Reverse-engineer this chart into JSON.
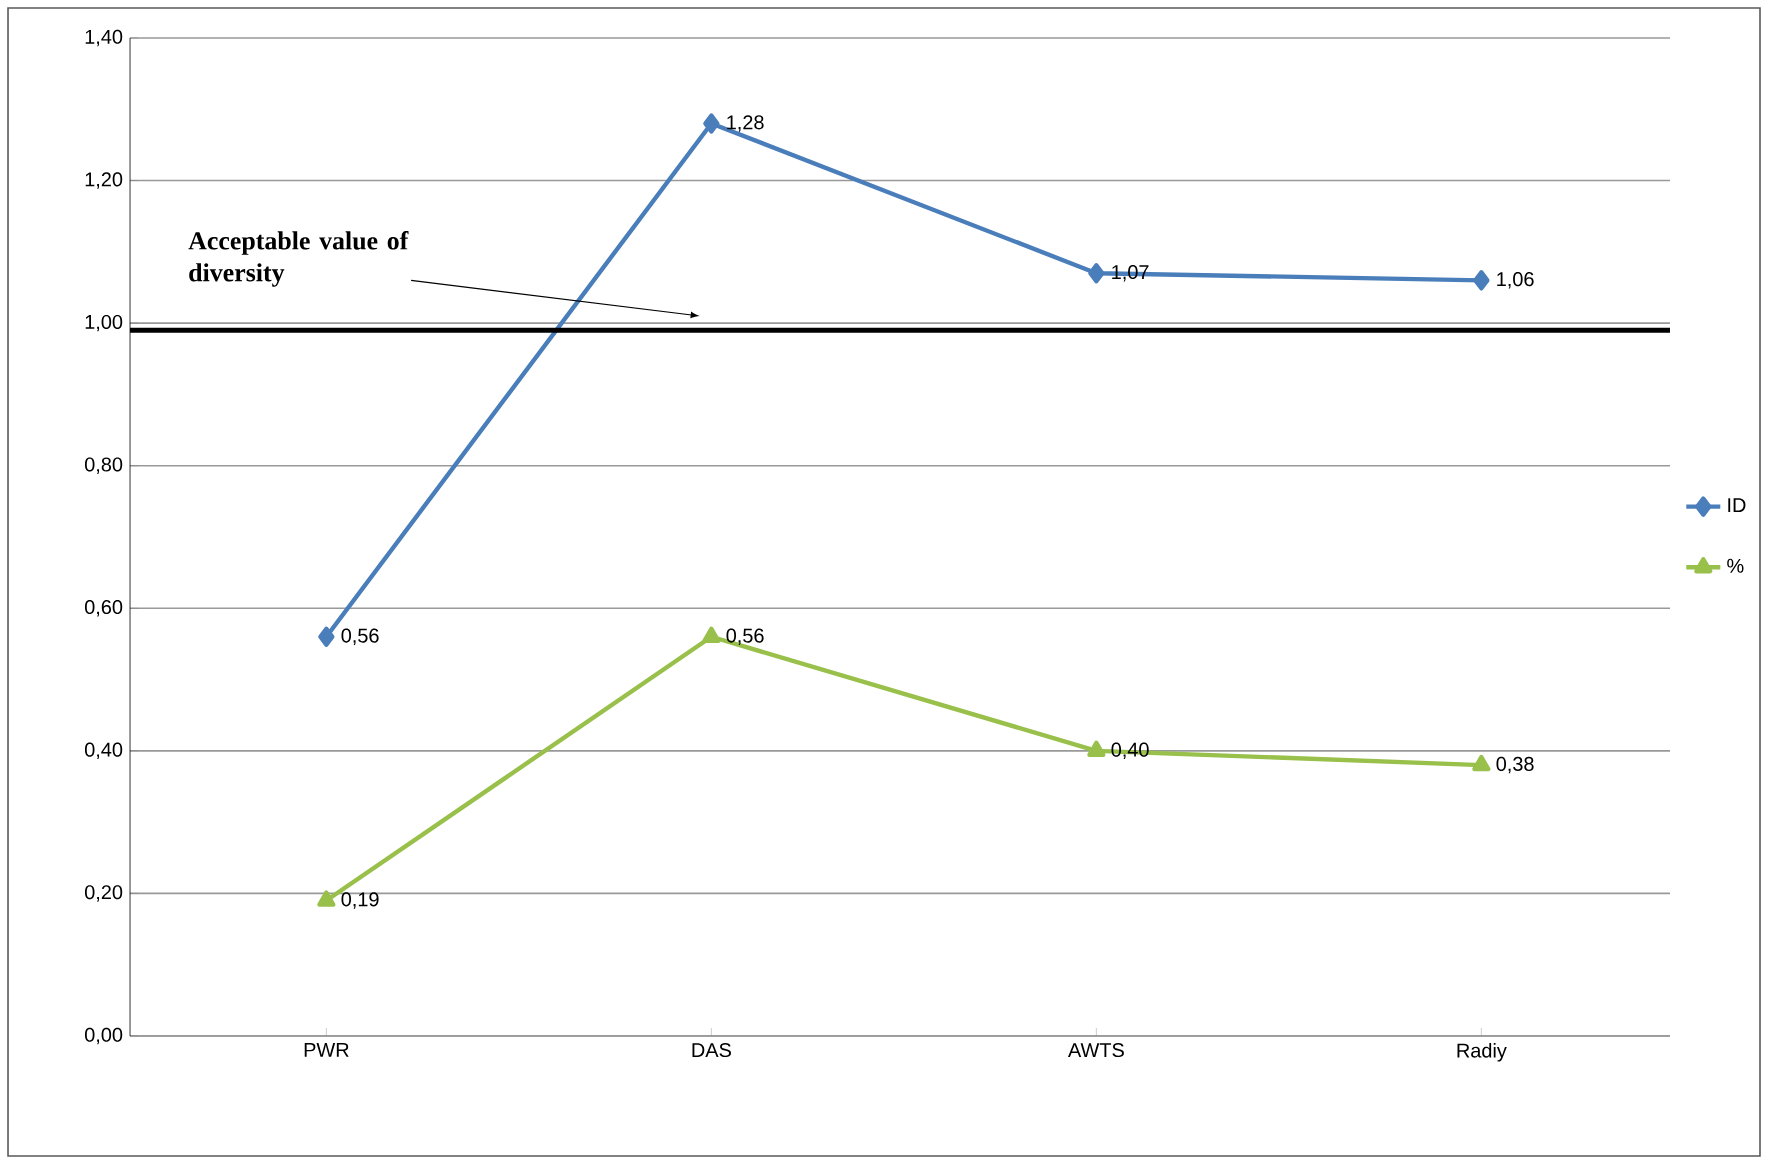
{
  "chart_data": {
    "type": "line",
    "categories": [
      "PWR",
      "DAS",
      "AWTS",
      "Radiy"
    ],
    "series": [
      {
        "name": "ID",
        "color": "#4a7ebb",
        "marker": "diamond",
        "values": [
          0.56,
          1.28,
          1.07,
          1.06
        ],
        "value_labels": [
          "0,56",
          "1,28",
          "1,07",
          "1,06"
        ]
      },
      {
        "name": "%",
        "color": "#98c04a",
        "marker": "triangle",
        "values": [
          0.19,
          0.56,
          0.4,
          0.38
        ],
        "value_labels": [
          "0,19",
          "0,56",
          "0,40",
          "0,38"
        ]
      }
    ],
    "ylim": [
      0,
      1.4
    ],
    "yticks": [
      {
        "value": 0,
        "label": "0,00"
      },
      {
        "value": 0.2,
        "label": "0,20"
      },
      {
        "value": 0.4,
        "label": "0,40"
      },
      {
        "value": 0.6,
        "label": "0,60"
      },
      {
        "value": 0.8,
        "label": "0,80"
      },
      {
        "value": 1.0,
        "label": "1,00"
      },
      {
        "value": 1.2,
        "label": "1,20"
      },
      {
        "value": 1.4,
        "label": "1,40"
      }
    ],
    "ref_lines": [
      {
        "axis": "y",
        "value": 0.99,
        "label": "Acceptable value of diversity",
        "color": "#000000"
      }
    ],
    "grid": "y",
    "legend": "right"
  }
}
